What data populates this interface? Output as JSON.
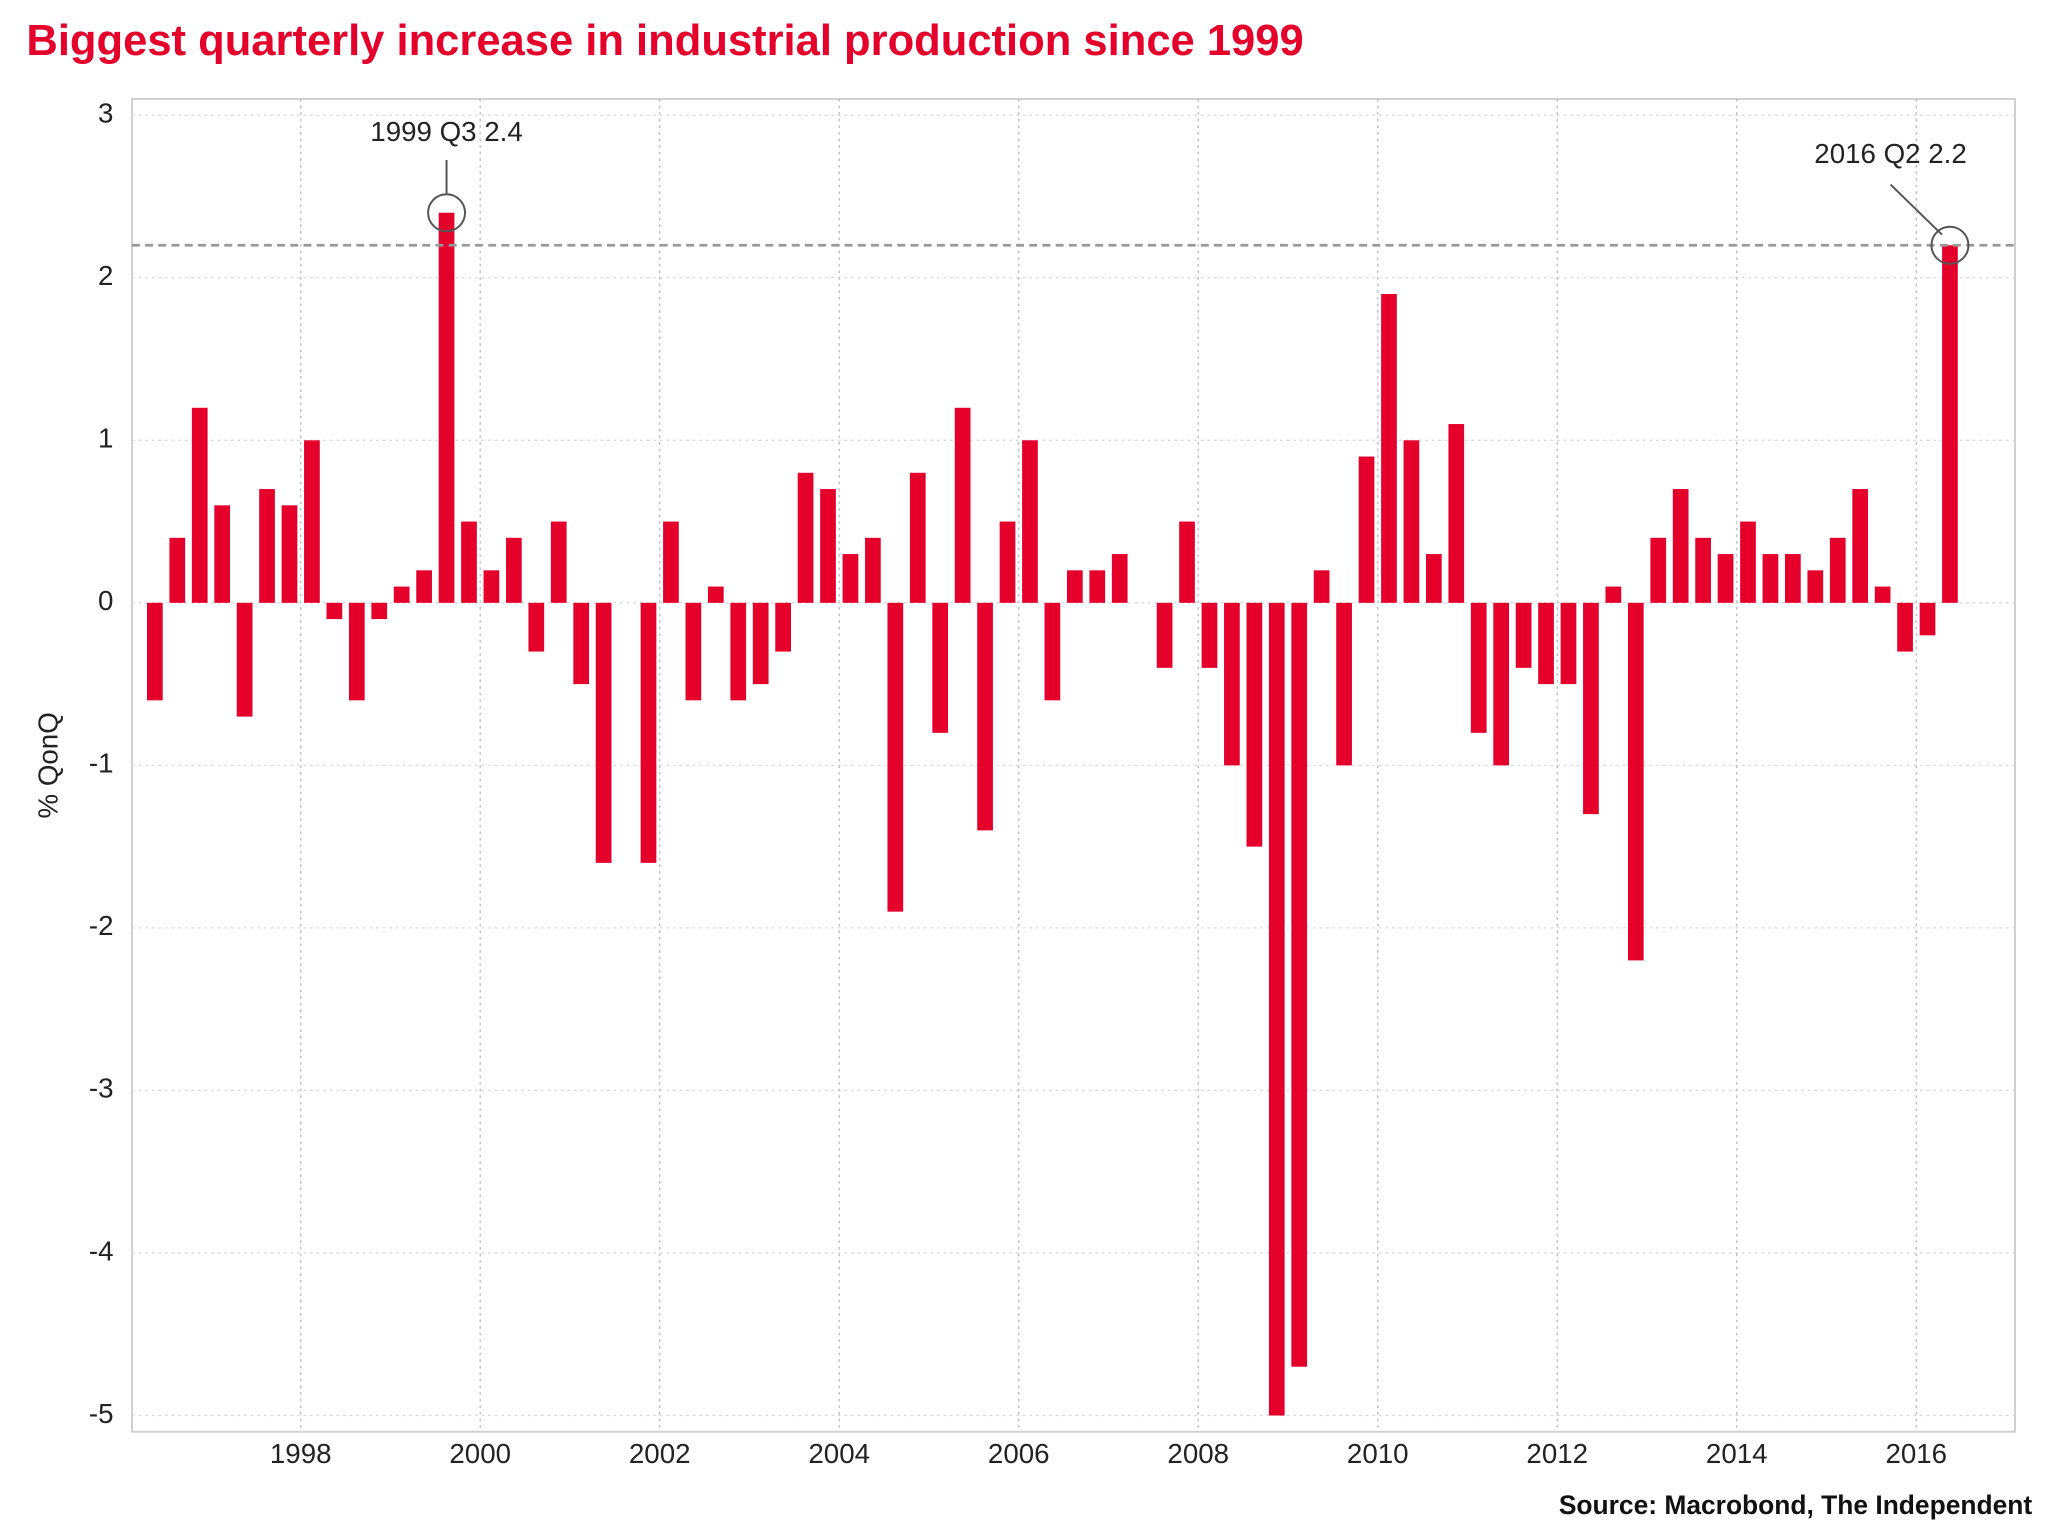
{
  "chart_data": {
    "type": "bar",
    "title": "Biggest quarterly increase in industrial production since 1999",
    "y_label": "% QonQ",
    "source": "Source: Macrobond, The Independent",
    "color": "#e4002b",
    "x": [
      1996.375,
      1996.625,
      1996.875,
      1997.125,
      1997.375,
      1997.625,
      1997.875,
      1998.125,
      1998.375,
      1998.625,
      1998.875,
      1999.125,
      1999.375,
      1999.625,
      1999.875,
      2000.125,
      2000.375,
      2000.625,
      2000.875,
      2001.125,
      2001.375,
      2001.625,
      2001.875,
      2002.125,
      2002.375,
      2002.625,
      2002.875,
      2003.125,
      2003.375,
      2003.625,
      2003.875,
      2004.125,
      2004.375,
      2004.625,
      2004.875,
      2005.125,
      2005.375,
      2005.625,
      2005.875,
      2006.125,
      2006.375,
      2006.625,
      2006.875,
      2007.125,
      2007.375,
      2007.625,
      2007.875,
      2008.125,
      2008.375,
      2008.625,
      2008.875,
      2009.125,
      2009.375,
      2009.625,
      2009.875,
      2010.125,
      2010.375,
      2010.625,
      2010.875,
      2011.125,
      2011.375,
      2011.625,
      2011.875,
      2012.125,
      2012.375,
      2012.625,
      2012.875,
      2013.125,
      2013.375,
      2013.625,
      2013.875,
      2014.125,
      2014.375,
      2014.625,
      2014.875,
      2015.125,
      2015.375,
      2015.625,
      2015.875,
      2016.125,
      2016.375
    ],
    "values": [
      -0.6,
      0.4,
      1.2,
      0.6,
      -0.7,
      0.7,
      0.6,
      1.0,
      -0.1,
      -0.6,
      -0.1,
      0.1,
      0.2,
      2.4,
      0.5,
      0.2,
      0.4,
      -0.3,
      0.5,
      -0.5,
      -1.6,
      0,
      -1.6,
      0.5,
      -0.6,
      0.1,
      -0.6,
      -0.5,
      -0.3,
      0.8,
      0.7,
      0.3,
      0.4,
      -1.9,
      0.8,
      -0.8,
      1.2,
      -1.4,
      0.5,
      1.0,
      -0.6,
      0.2,
      0.2,
      0.3,
      0,
      -0.4,
      0.5,
      -0.4,
      -1.0,
      -1.5,
      -5.0,
      -4.7,
      0.2,
      -1.0,
      0.9,
      1.9,
      1.0,
      0.3,
      1.1,
      -0.8,
      -1.0,
      -0.4,
      -0.5,
      -0.5,
      -1.3,
      0.1,
      -2.2,
      0.4,
      0.7,
      0.4,
      0.3,
      0.5,
      0.3,
      0.3,
      0.2,
      0.4,
      0.7,
      0.1,
      -0.3,
      -0.2,
      2.2
    ],
    "xlim": [
      1996.12,
      2017.1
    ],
    "xticks": [
      1998,
      2000,
      2002,
      2004,
      2006,
      2008,
      2010,
      2012,
      2014,
      2016
    ],
    "ylim": [
      -5.1,
      3.1
    ],
    "yticks": [
      -5,
      -4,
      -3,
      -2,
      -1,
      0,
      1,
      2,
      3
    ],
    "grid": true,
    "reference_line": 2.2,
    "annotations": [
      {
        "text": "1999 Q3 2.4",
        "x": 1999.625,
        "y": 2.4
      },
      {
        "text": "2016 Q2 2.2",
        "x": 2016.375,
        "y": 2.2
      }
    ]
  }
}
